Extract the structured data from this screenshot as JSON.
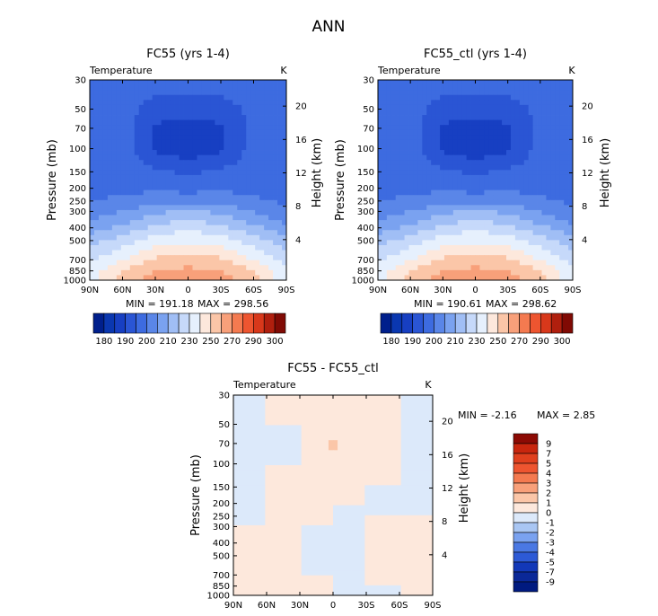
{
  "figure": {
    "title": "ANN"
  },
  "chart_data": [
    {
      "type": "heatmap",
      "title": "FC55 (yrs 1-4)",
      "variable": "Temperature",
      "units": "K",
      "xlabel": "",
      "ylabel": "Pressure (mb)",
      "ylabel_right": "Height (km)",
      "x_ticks": [
        "90N",
        "60N",
        "30N",
        "0",
        "30S",
        "60S",
        "90S"
      ],
      "y_ticks": [
        "30",
        "50",
        "70",
        "100",
        "150",
        "200",
        "250",
        "300",
        "400",
        "500",
        "700",
        "850",
        "1000"
      ],
      "right_ticks": [
        "20",
        "16",
        "12",
        "8",
        "4"
      ],
      "min_label": "MIN =   191.18",
      "max_label": "MAX =   298.56",
      "colorbar_labels": [
        "180",
        "190",
        "200",
        "210",
        "230",
        "250",
        "270",
        "290",
        "300"
      ],
      "colors": [
        "#001f8c",
        "#0a37b0",
        "#173fc2",
        "#2a55d4",
        "#3d6be0",
        "#5a86e8",
        "#7aa2f0",
        "#a0bef5",
        "#c6d9fa",
        "#e6f0fd",
        "#fde8dc",
        "#fbc6a8",
        "#f8a07a",
        "#f47a50",
        "#ee5530",
        "#d8381b",
        "#b01f0e",
        "#800a04"
      ],
      "x": [
        90,
        60,
        30,
        0,
        -30,
        -60,
        -90
      ],
      "pressure": [
        30,
        50,
        70,
        100,
        150,
        200,
        250,
        300,
        400,
        500,
        700,
        850,
        1000
      ],
      "z": [
        [
          212,
          215,
          215,
          215,
          215,
          213,
          210
        ],
        [
          213,
          215,
          205,
          205,
          205,
          213,
          210
        ],
        [
          213,
          215,
          198,
          195,
          198,
          213,
          210
        ],
        [
          214,
          216,
          198,
          194,
          198,
          214,
          210
        ],
        [
          215,
          216,
          212,
          208,
          212,
          216,
          212
        ],
        [
          217,
          218,
          218,
          216,
          218,
          218,
          214
        ],
        [
          220,
          222,
          226,
          228,
          226,
          222,
          218
        ],
        [
          225,
          230,
          238,
          242,
          238,
          230,
          222
        ],
        [
          235,
          243,
          253,
          258,
          253,
          243,
          233
        ],
        [
          246,
          255,
          265,
          268,
          265,
          255,
          244
        ],
        [
          258,
          270,
          282,
          285,
          282,
          270,
          256
        ],
        [
          265,
          280,
          290,
          293,
          290,
          280,
          262
        ],
        [
          262,
          286,
          295,
          298,
          295,
          286,
          260
        ]
      ]
    },
    {
      "type": "heatmap",
      "title": "FC55_ctl (yrs 1-4)",
      "variable": "Temperature",
      "units": "K",
      "xlabel": "",
      "ylabel": "Pressure (mb)",
      "ylabel_right": "Height (km)",
      "x_ticks": [
        "90N",
        "60N",
        "30N",
        "0",
        "30S",
        "60S",
        "90S"
      ],
      "y_ticks": [
        "30",
        "50",
        "70",
        "100",
        "150",
        "200",
        "250",
        "300",
        "400",
        "500",
        "700",
        "850",
        "1000"
      ],
      "right_ticks": [
        "20",
        "16",
        "12",
        "8",
        "4"
      ],
      "min_label": "MIN =   190.61",
      "max_label": "MAX =   298.62",
      "colorbar_labels": [
        "180",
        "190",
        "200",
        "210",
        "230",
        "250",
        "270",
        "290",
        "300"
      ],
      "colors": [
        "#001f8c",
        "#0a37b0",
        "#173fc2",
        "#2a55d4",
        "#3d6be0",
        "#5a86e8",
        "#7aa2f0",
        "#a0bef5",
        "#c6d9fa",
        "#e6f0fd",
        "#fde8dc",
        "#fbc6a8",
        "#f8a07a",
        "#f47a50",
        "#ee5530",
        "#d8381b",
        "#b01f0e",
        "#800a04"
      ],
      "x": [
        90,
        60,
        30,
        0,
        -30,
        -60,
        -90
      ],
      "pressure": [
        30,
        50,
        70,
        100,
        150,
        200,
        250,
        300,
        400,
        500,
        700,
        850,
        1000
      ],
      "z": [
        [
          212,
          215,
          215,
          215,
          215,
          213,
          210
        ],
        [
          213,
          215,
          205,
          205,
          205,
          213,
          210
        ],
        [
          213,
          215,
          198,
          195,
          198,
          213,
          210
        ],
        [
          214,
          216,
          198,
          194,
          198,
          214,
          210
        ],
        [
          215,
          216,
          212,
          208,
          212,
          216,
          212
        ],
        [
          217,
          218,
          218,
          216,
          218,
          218,
          214
        ],
        [
          220,
          222,
          226,
          228,
          226,
          222,
          218
        ],
        [
          225,
          230,
          238,
          242,
          238,
          230,
          222
        ],
        [
          235,
          243,
          253,
          258,
          253,
          243,
          233
        ],
        [
          246,
          255,
          265,
          268,
          265,
          255,
          244
        ],
        [
          258,
          270,
          282,
          285,
          282,
          270,
          256
        ],
        [
          265,
          280,
          290,
          293,
          290,
          280,
          262
        ],
        [
          262,
          286,
          295,
          298,
          295,
          286,
          260
        ]
      ]
    },
    {
      "type": "heatmap",
      "title": "FC55 - FC55_ctl",
      "variable": "Temperature",
      "units": "K",
      "xlabel": "",
      "ylabel": "Pressure (mb)",
      "ylabel_right": "Height (km)",
      "x_ticks": [
        "90N",
        "60N",
        "30N",
        "0",
        "30S",
        "60S",
        "90S"
      ],
      "y_ticks": [
        "30",
        "50",
        "70",
        "100",
        "150",
        "200",
        "250",
        "300",
        "400",
        "500",
        "700",
        "850",
        "1000"
      ],
      "right_ticks": [
        "20",
        "16",
        "12",
        "8",
        "4"
      ],
      "min_label": "MIN =    -2.16",
      "max_label": "MAX =     2.85",
      "colorbar_labels": [
        "9",
        "7",
        "5",
        "4",
        "3",
        "2",
        "1",
        "0",
        "-1",
        "-2",
        "-3",
        "-4",
        "-5",
        "-7",
        "-9"
      ],
      "colors": [
        "#8c0a04",
        "#c8260e",
        "#e0401e",
        "#ee5530",
        "#f47a50",
        "#f8a07a",
        "#fbc6a8",
        "#fde8dc",
        "#dce9fa",
        "#a9c6f3",
        "#7aa2f0",
        "#4a78e3",
        "#2d5ad6",
        "#1238b8",
        "#0a2898",
        "#001a80"
      ],
      "x": [
        90,
        60,
        30,
        0,
        -30,
        -60,
        -90
      ],
      "pressure": [
        30,
        50,
        70,
        100,
        150,
        200,
        250,
        300,
        400,
        500,
        700,
        850,
        1000
      ],
      "z": [
        [
          -0.5,
          0,
          0.5,
          0.5,
          0,
          0,
          -0.6
        ],
        [
          -0.3,
          0,
          0,
          0.6,
          0.3,
          0,
          -0.7
        ],
        [
          -0.2,
          0,
          0,
          1.2,
          0.3,
          0,
          -0.7
        ],
        [
          0,
          0,
          0,
          0.6,
          0.3,
          0,
          -0.5
        ],
        [
          0,
          0,
          0.1,
          0.2,
          0,
          0,
          -0.3
        ],
        [
          0,
          0,
          0.3,
          0,
          0,
          0,
          0
        ],
        [
          0,
          0,
          0.3,
          0,
          0,
          0,
          0
        ],
        [
          0,
          0,
          0,
          0,
          0,
          0.1,
          0
        ],
        [
          0,
          0.2,
          0,
          0,
          0,
          0.3,
          0
        ],
        [
          0,
          0.3,
          0,
          0,
          0,
          0.2,
          0
        ],
        [
          0,
          0.3,
          0,
          0,
          0,
          0.2,
          0.2
        ],
        [
          0,
          0.2,
          0.1,
          0,
          0,
          0,
          0.3
        ],
        [
          0,
          0.1,
          0,
          0,
          0,
          0,
          0.2
        ]
      ]
    }
  ]
}
